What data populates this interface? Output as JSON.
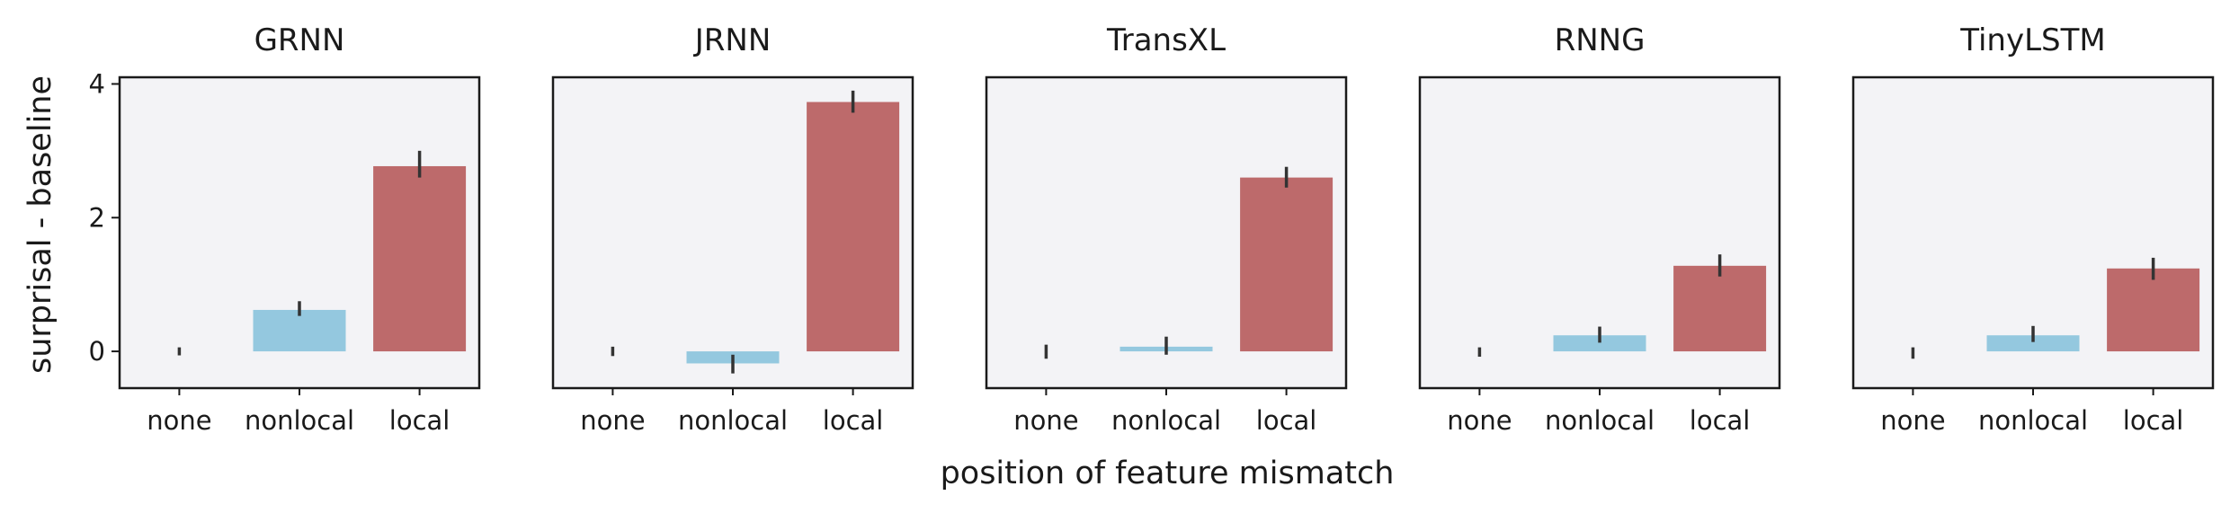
{
  "figure": {
    "xlabel": "position of feature mismatch",
    "ylabel": "surprisal - baseline"
  },
  "colors": {
    "none": "#f3f3f6",
    "nonlocal": "#94c8df",
    "local": "#bd6a6b",
    "panel_background": "#f3f3f6",
    "axes_edge": "#1a1a1a",
    "error_bar": "#333333"
  },
  "chart_data": [
    {
      "type": "bar",
      "title": "GRNN",
      "categories": [
        "none",
        "nonlocal",
        "local"
      ],
      "values": [
        0.0,
        0.62,
        2.77
      ],
      "error": [
        [
          -0.06,
          0.06
        ],
        [
          0.53,
          0.75
        ],
        [
          2.6,
          3.0
        ]
      ],
      "ylim": [
        -0.55,
        4.1
      ],
      "yticks": [
        0,
        2,
        4
      ],
      "grid": false
    },
    {
      "type": "bar",
      "title": "JRNN",
      "categories": [
        "none",
        "nonlocal",
        "local"
      ],
      "values": [
        0.0,
        -0.18,
        3.73
      ],
      "error": [
        [
          -0.07,
          0.07
        ],
        [
          -0.33,
          -0.05
        ],
        [
          3.57,
          3.9
        ]
      ],
      "ylim": [
        -0.55,
        4.1
      ],
      "yticks": [
        0,
        2,
        4
      ],
      "grid": false
    },
    {
      "type": "bar",
      "title": "TransXL",
      "categories": [
        "none",
        "nonlocal",
        "local"
      ],
      "values": [
        0.0,
        0.07,
        2.6
      ],
      "error": [
        [
          -0.11,
          0.1
        ],
        [
          -0.05,
          0.22
        ],
        [
          2.45,
          2.76
        ]
      ],
      "ylim": [
        -0.55,
        4.1
      ],
      "yticks": [
        0,
        2,
        4
      ],
      "grid": false
    },
    {
      "type": "bar",
      "title": "RNNG",
      "categories": [
        "none",
        "nonlocal",
        "local"
      ],
      "values": [
        0.0,
        0.24,
        1.28
      ],
      "error": [
        [
          -0.08,
          0.06
        ],
        [
          0.13,
          0.37
        ],
        [
          1.12,
          1.45
        ]
      ],
      "ylim": [
        -0.55,
        4.1
      ],
      "yticks": [
        0,
        2,
        4
      ],
      "grid": false
    },
    {
      "type": "bar",
      "title": "TinyLSTM",
      "categories": [
        "none",
        "nonlocal",
        "local"
      ],
      "values": [
        0.0,
        0.24,
        1.24
      ],
      "error": [
        [
          -0.11,
          0.06
        ],
        [
          0.14,
          0.38
        ],
        [
          1.07,
          1.4
        ]
      ],
      "ylim": [
        -0.55,
        4.1
      ],
      "yticks": [
        0,
        2,
        4
      ],
      "grid": false
    }
  ]
}
